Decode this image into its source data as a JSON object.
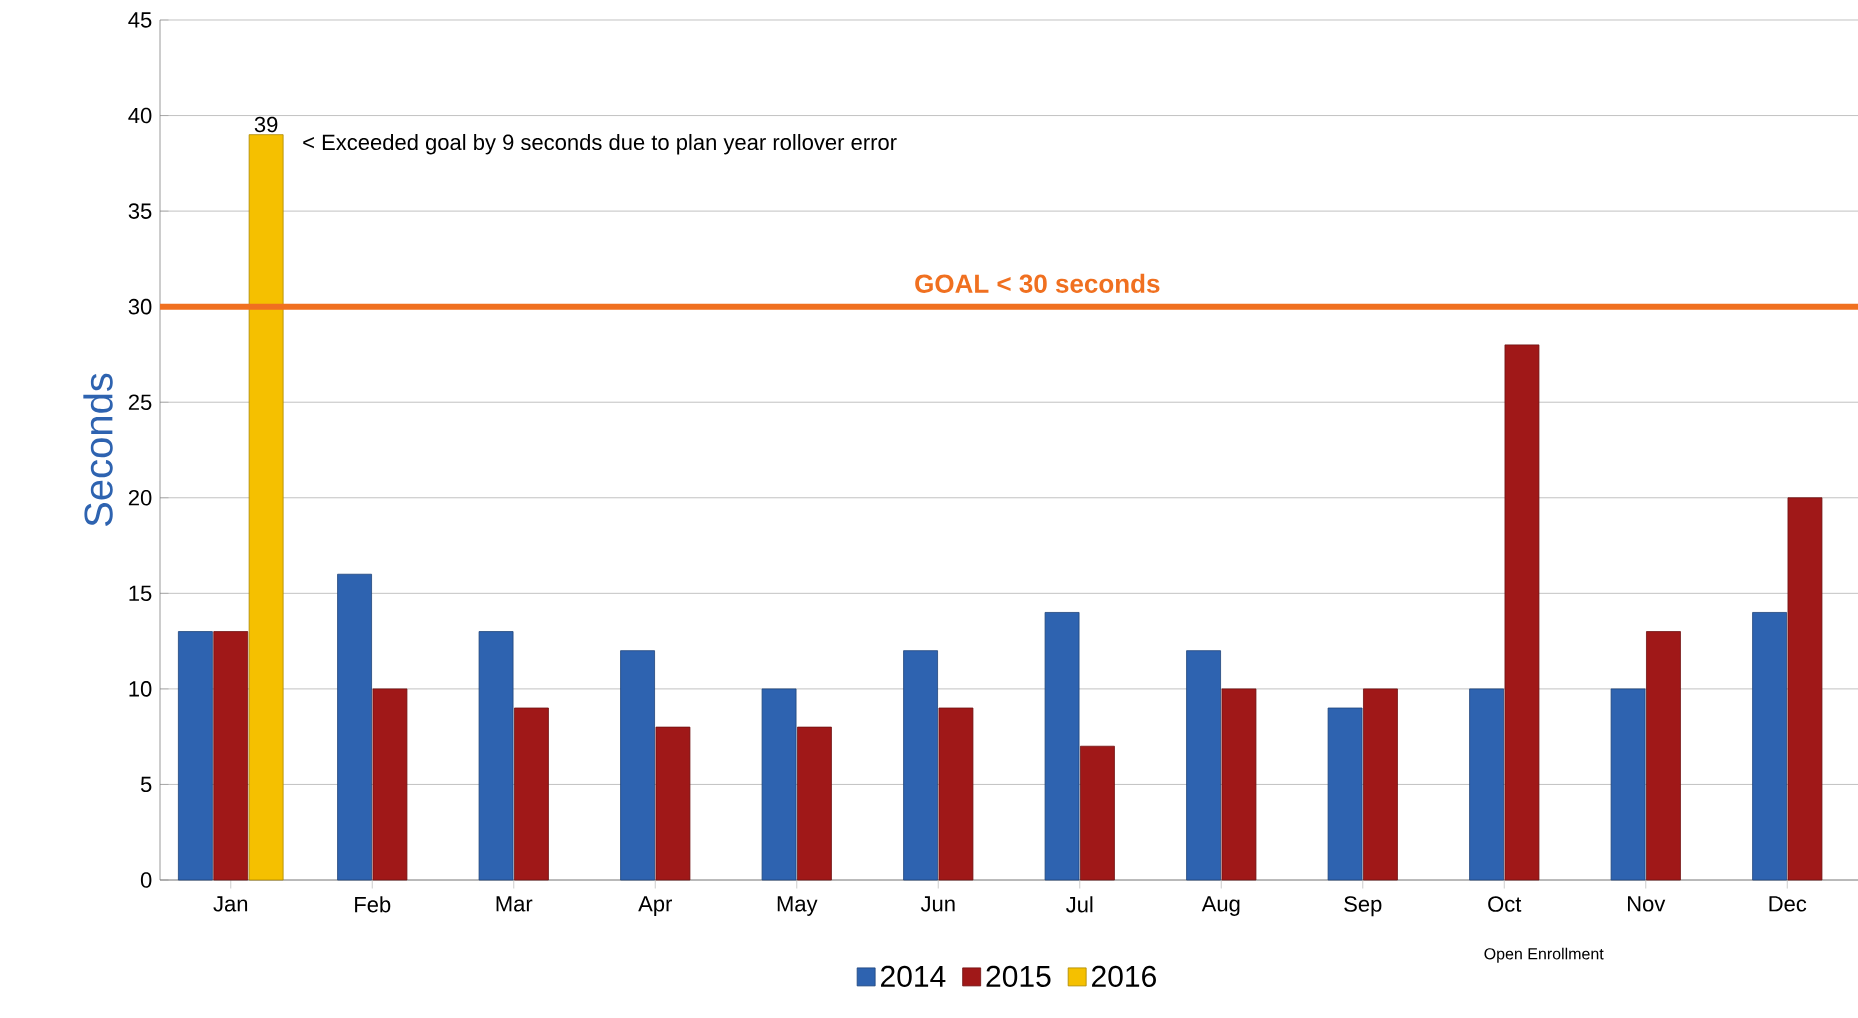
{
  "chart_data": {
    "type": "bar",
    "ylabel": "Seconds",
    "categories": [
      "Jan",
      "Feb",
      "Mar",
      "Apr",
      "May",
      "Jun",
      "Jul",
      "Aug",
      "Sep",
      "Oct",
      "Nov",
      "Dec"
    ],
    "series": [
      {
        "name": "2014",
        "color": "#2e63b0",
        "values": [
          13,
          16,
          13,
          12,
          10,
          12,
          14,
          12,
          9,
          10,
          10,
          14
        ]
      },
      {
        "name": "2015",
        "color": "#a01818",
        "values": [
          13,
          10,
          9,
          8,
          8,
          9,
          7,
          10,
          10,
          28,
          13,
          20
        ]
      },
      {
        "name": "2016",
        "color": "#f5c000",
        "values": [
          39,
          null,
          null,
          null,
          null,
          null,
          null,
          null,
          null,
          null,
          null,
          null
        ],
        "value_labels": [
          "39",
          null,
          null,
          null,
          null,
          null,
          null,
          null,
          null,
          null,
          null,
          null
        ]
      }
    ],
    "ylim": [
      0,
      45
    ],
    "yticks": [
      0,
      5,
      10,
      15,
      20,
      25,
      30,
      35,
      40,
      45
    ],
    "grid": "y",
    "legend": "bottom",
    "ref_lines": [
      {
        "axis": "y",
        "value": 30,
        "label": "GOAL < 30 seconds",
        "color": "#f07020"
      }
    ],
    "annotations": [
      "< Exceeded goal by 9 seconds due to plan year rollover error",
      "Open Enrollment"
    ]
  }
}
